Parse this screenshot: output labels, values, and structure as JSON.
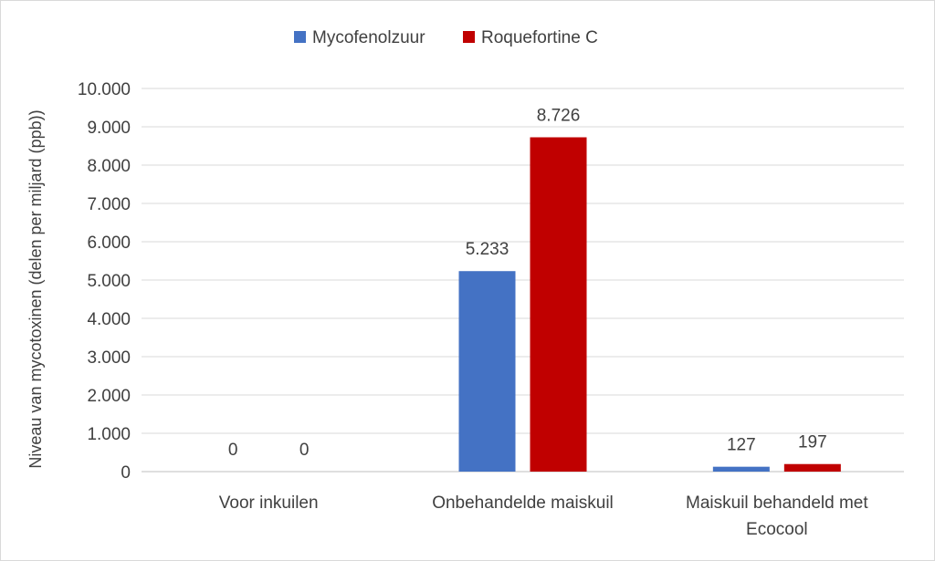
{
  "chart_data": {
    "type": "bar",
    "categories": [
      "Voor inkuilen",
      "Onbehandelde maiskuil",
      "Maiskuil behandeld met Ecocool"
    ],
    "category_lines": [
      [
        "Voor inkuilen"
      ],
      [
        "Onbehandelde maiskuil"
      ],
      [
        "Maiskuil behandeld met",
        "Ecocool"
      ]
    ],
    "series": [
      {
        "name": "Mycofenolzuur",
        "values": [
          0,
          5233,
          127
        ],
        "labels": [
          "0",
          "5.233",
          "127"
        ],
        "color": "#4472c4"
      },
      {
        "name": "Roquefortine C",
        "values": [
          0,
          8726,
          197
        ],
        "labels": [
          "0",
          "8.726",
          "197"
        ],
        "color": "#c00000"
      }
    ],
    "ylabel": "Niveau van mycotoxinen (delen per miljard (ppb))",
    "ylim": [
      0,
      10000
    ],
    "yticks": [
      0,
      1000,
      2000,
      3000,
      4000,
      5000,
      6000,
      7000,
      8000,
      9000,
      10000
    ],
    "ytick_labels": [
      "0",
      "1.000",
      "2.000",
      "3.000",
      "4.000",
      "5.000",
      "6.000",
      "7.000",
      "8.000",
      "9.000",
      "10.000"
    ],
    "grid": true,
    "legend": "top-center"
  }
}
